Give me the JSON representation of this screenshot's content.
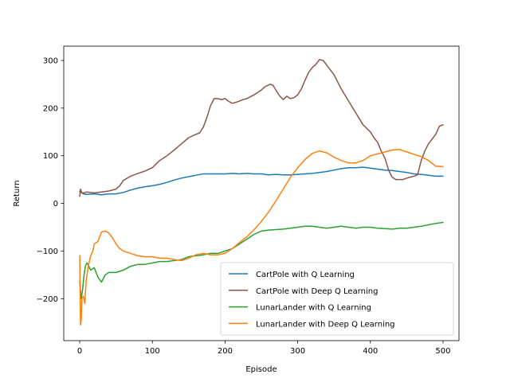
{
  "chart_data": {
    "type": "line",
    "xlabel": "Episode",
    "ylabel": "Return",
    "xlim": [
      -22,
      522
    ],
    "ylim": [
      -288,
      330
    ],
    "xticks": [
      0,
      100,
      200,
      300,
      400,
      500
    ],
    "yticks": [
      -200,
      -100,
      0,
      100,
      200,
      300
    ],
    "xtick_labels": [
      "0",
      "100",
      "200",
      "300",
      "400",
      "500"
    ],
    "ytick_labels": [
      "−200",
      "−100",
      "0",
      "100",
      "200",
      "300"
    ],
    "grid": false,
    "legend_position": "lower-right",
    "series": [
      {
        "name": "CartPole with Q Learning",
        "color": "#1f77b4",
        "points": [
          [
            0,
            25
          ],
          [
            5,
            20
          ],
          [
            10,
            19
          ],
          [
            20,
            20
          ],
          [
            30,
            18
          ],
          [
            40,
            20
          ],
          [
            50,
            20
          ],
          [
            60,
            23
          ],
          [
            70,
            28
          ],
          [
            80,
            32
          ],
          [
            90,
            35
          ],
          [
            100,
            37
          ],
          [
            110,
            40
          ],
          [
            120,
            44
          ],
          [
            130,
            49
          ],
          [
            140,
            53
          ],
          [
            150,
            56
          ],
          [
            160,
            59
          ],
          [
            170,
            62
          ],
          [
            180,
            62
          ],
          [
            190,
            62
          ],
          [
            200,
            62
          ],
          [
            210,
            63
          ],
          [
            220,
            62
          ],
          [
            230,
            63
          ],
          [
            240,
            62
          ],
          [
            250,
            62
          ],
          [
            260,
            60
          ],
          [
            270,
            61
          ],
          [
            280,
            60
          ],
          [
            290,
            60
          ],
          [
            300,
            61
          ],
          [
            310,
            62
          ],
          [
            320,
            63
          ],
          [
            330,
            65
          ],
          [
            340,
            67
          ],
          [
            350,
            70
          ],
          [
            360,
            73
          ],
          [
            370,
            75
          ],
          [
            380,
            75
          ],
          [
            390,
            76
          ],
          [
            400,
            74
          ],
          [
            410,
            72
          ],
          [
            420,
            70
          ],
          [
            430,
            69
          ],
          [
            440,
            67
          ],
          [
            450,
            65
          ],
          [
            460,
            62
          ],
          [
            470,
            61
          ],
          [
            480,
            59
          ],
          [
            490,
            57
          ],
          [
            500,
            57
          ]
        ]
      },
      {
        "name": "CartPole with Deep Q Learning",
        "color": "#8c564b",
        "points": [
          [
            0,
            15
          ],
          [
            1,
            30
          ],
          [
            3,
            22
          ],
          [
            5,
            22
          ],
          [
            10,
            24
          ],
          [
            20,
            22
          ],
          [
            30,
            24
          ],
          [
            40,
            26
          ],
          [
            50,
            30
          ],
          [
            55,
            37
          ],
          [
            60,
            48
          ],
          [
            70,
            57
          ],
          [
            80,
            63
          ],
          [
            90,
            68
          ],
          [
            100,
            75
          ],
          [
            110,
            90
          ],
          [
            120,
            100
          ],
          [
            130,
            112
          ],
          [
            140,
            125
          ],
          [
            150,
            138
          ],
          [
            160,
            145
          ],
          [
            165,
            148
          ],
          [
            170,
            160
          ],
          [
            175,
            180
          ],
          [
            180,
            205
          ],
          [
            185,
            220
          ],
          [
            190,
            220
          ],
          [
            195,
            218
          ],
          [
            200,
            220
          ],
          [
            205,
            214
          ],
          [
            210,
            210
          ],
          [
            215,
            212
          ],
          [
            220,
            215
          ],
          [
            225,
            218
          ],
          [
            230,
            220
          ],
          [
            240,
            228
          ],
          [
            250,
            238
          ],
          [
            255,
            245
          ],
          [
            262,
            250
          ],
          [
            266,
            248
          ],
          [
            270,
            238
          ],
          [
            275,
            226
          ],
          [
            280,
            218
          ],
          [
            285,
            225
          ],
          [
            290,
            220
          ],
          [
            295,
            222
          ],
          [
            300,
            228
          ],
          [
            305,
            240
          ],
          [
            310,
            258
          ],
          [
            315,
            275
          ],
          [
            320,
            285
          ],
          [
            325,
            292
          ],
          [
            330,
            302
          ],
          [
            335,
            300
          ],
          [
            340,
            290
          ],
          [
            345,
            280
          ],
          [
            350,
            270
          ],
          [
            355,
            255
          ],
          [
            360,
            240
          ],
          [
            370,
            215
          ],
          [
            380,
            190
          ],
          [
            390,
            165
          ],
          [
            400,
            150
          ],
          [
            405,
            138
          ],
          [
            410,
            128
          ],
          [
            415,
            110
          ],
          [
            420,
            95
          ],
          [
            425,
            70
          ],
          [
            430,
            55
          ],
          [
            435,
            50
          ],
          [
            440,
            50
          ],
          [
            445,
            50
          ],
          [
            450,
            53
          ],
          [
            455,
            55
          ],
          [
            460,
            57
          ],
          [
            465,
            60
          ],
          [
            470,
            90
          ],
          [
            475,
            110
          ],
          [
            480,
            125
          ],
          [
            485,
            135
          ],
          [
            490,
            145
          ],
          [
            495,
            162
          ],
          [
            500,
            165
          ]
        ]
      },
      {
        "name": "LunarLander with Q Learning",
        "color": "#2ca02c",
        "points": [
          [
            0,
            -165
          ],
          [
            2,
            -200
          ],
          [
            4,
            -180
          ],
          [
            6,
            -150
          ],
          [
            8,
            -130
          ],
          [
            10,
            -125
          ],
          [
            12,
            -130
          ],
          [
            15,
            -140
          ],
          [
            20,
            -135
          ],
          [
            25,
            -155
          ],
          [
            30,
            -165
          ],
          [
            35,
            -150
          ],
          [
            40,
            -145
          ],
          [
            50,
            -145
          ],
          [
            60,
            -140
          ],
          [
            70,
            -132
          ],
          [
            80,
            -128
          ],
          [
            90,
            -128
          ],
          [
            100,
            -125
          ],
          [
            110,
            -122
          ],
          [
            120,
            -122
          ],
          [
            130,
            -120
          ],
          [
            140,
            -118
          ],
          [
            150,
            -112
          ],
          [
            160,
            -110
          ],
          [
            170,
            -108
          ],
          [
            180,
            -105
          ],
          [
            190,
            -105
          ],
          [
            200,
            -100
          ],
          [
            210,
            -95
          ],
          [
            220,
            -85
          ],
          [
            230,
            -75
          ],
          [
            240,
            -65
          ],
          [
            250,
            -58
          ],
          [
            260,
            -56
          ],
          [
            270,
            -55
          ],
          [
            280,
            -54
          ],
          [
            290,
            -52
          ],
          [
            300,
            -50
          ],
          [
            310,
            -48
          ],
          [
            320,
            -48
          ],
          [
            330,
            -50
          ],
          [
            340,
            -52
          ],
          [
            350,
            -50
          ],
          [
            360,
            -48
          ],
          [
            370,
            -50
          ],
          [
            380,
            -52
          ],
          [
            390,
            -50
          ],
          [
            400,
            -50
          ],
          [
            410,
            -52
          ],
          [
            420,
            -53
          ],
          [
            430,
            -54
          ],
          [
            440,
            -52
          ],
          [
            450,
            -52
          ],
          [
            460,
            -50
          ],
          [
            470,
            -48
          ],
          [
            480,
            -45
          ],
          [
            490,
            -42
          ],
          [
            500,
            -40
          ]
        ]
      },
      {
        "name": "LunarLander with Deep Q Learning",
        "color": "#ff7f0e",
        "points": [
          [
            0,
            -110
          ],
          [
            1,
            -255
          ],
          [
            2,
            -245
          ],
          [
            3,
            -200
          ],
          [
            5,
            -195
          ],
          [
            7,
            -210
          ],
          [
            9,
            -160
          ],
          [
            12,
            -130
          ],
          [
            15,
            -110
          ],
          [
            18,
            -100
          ],
          [
            20,
            -85
          ],
          [
            25,
            -80
          ],
          [
            30,
            -60
          ],
          [
            35,
            -58
          ],
          [
            40,
            -62
          ],
          [
            45,
            -72
          ],
          [
            50,
            -85
          ],
          [
            55,
            -95
          ],
          [
            60,
            -100
          ],
          [
            70,
            -105
          ],
          [
            80,
            -110
          ],
          [
            90,
            -112
          ],
          [
            100,
            -112
          ],
          [
            110,
            -115
          ],
          [
            120,
            -115
          ],
          [
            130,
            -118
          ],
          [
            140,
            -120
          ],
          [
            150,
            -115
          ],
          [
            160,
            -108
          ],
          [
            170,
            -105
          ],
          [
            180,
            -108
          ],
          [
            190,
            -108
          ],
          [
            200,
            -105
          ],
          [
            210,
            -95
          ],
          [
            220,
            -82
          ],
          [
            230,
            -70
          ],
          [
            240,
            -55
          ],
          [
            250,
            -38
          ],
          [
            260,
            -18
          ],
          [
            270,
            5
          ],
          [
            280,
            30
          ],
          [
            290,
            55
          ],
          [
            300,
            75
          ],
          [
            310,
            92
          ],
          [
            320,
            105
          ],
          [
            330,
            110
          ],
          [
            340,
            106
          ],
          [
            350,
            97
          ],
          [
            360,
            90
          ],
          [
            370,
            85
          ],
          [
            380,
            85
          ],
          [
            390,
            90
          ],
          [
            400,
            100
          ],
          [
            410,
            104
          ],
          [
            420,
            108
          ],
          [
            430,
            112
          ],
          [
            440,
            113
          ],
          [
            450,
            108
          ],
          [
            460,
            103
          ],
          [
            470,
            98
          ],
          [
            480,
            90
          ],
          [
            490,
            78
          ],
          [
            500,
            77
          ]
        ]
      }
    ]
  }
}
